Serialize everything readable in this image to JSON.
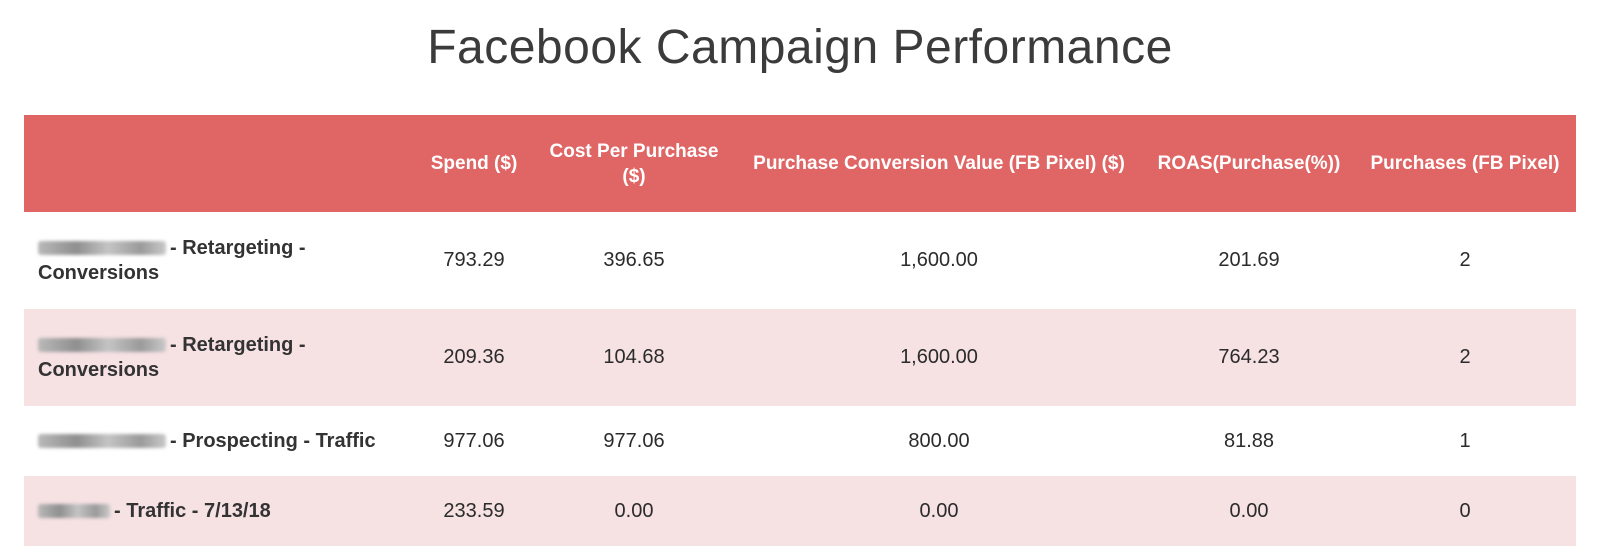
{
  "title": "Facebook Campaign Performance",
  "table": {
    "headers": [
      "",
      "Spend ($)",
      "Cost Per Purchase ($)",
      "Purchase Conversion Value (FB Pixel) ($)",
      "ROAS(Purchase(%))",
      "Purchases (FB Pixel)"
    ],
    "rows": [
      {
        "campaign": "- Retargeting - Conversions",
        "spend": "793.29",
        "cost_per_purchase": "396.65",
        "conversion_value": "1,600.00",
        "roas": "201.69",
        "purchases": "2"
      },
      {
        "campaign": "- Retargeting - Conversions",
        "spend": "209.36",
        "cost_per_purchase": "104.68",
        "conversion_value": "1,600.00",
        "roas": "764.23",
        "purchases": "2"
      },
      {
        "campaign": "- Prospecting - Traffic",
        "spend": "977.06",
        "cost_per_purchase": "977.06",
        "conversion_value": "800.00",
        "roas": "81.88",
        "purchases": "1"
      },
      {
        "campaign": "- Traffic - 7/13/18",
        "spend": "233.59",
        "cost_per_purchase": "0.00",
        "conversion_value": "0.00",
        "roas": "0.00",
        "purchases": "0"
      }
    ]
  },
  "colors": {
    "header_bg": "#e06666",
    "alt_row_bg": "#f6e1e3"
  }
}
